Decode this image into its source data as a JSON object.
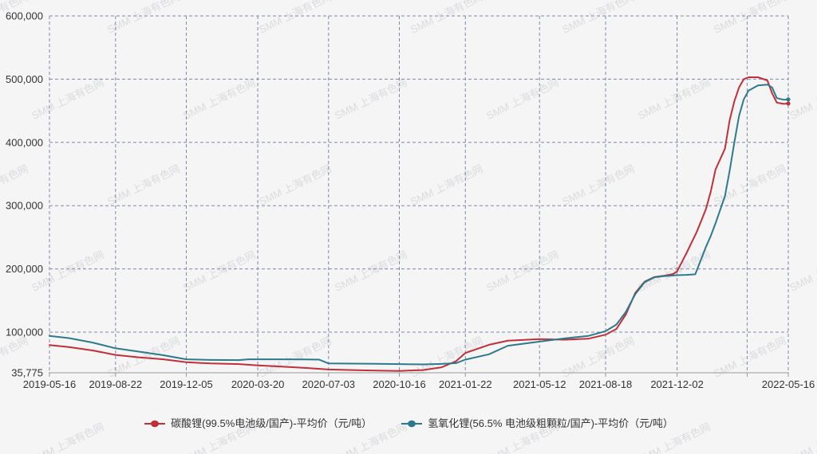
{
  "watermark": {
    "text": "SMM 上海有色网"
  },
  "chart_data": {
    "type": "line",
    "title": "",
    "grid": "dashed",
    "legend_position": "bottom",
    "x_axis": {
      "type": "time",
      "range": [
        "2019-05-16",
        "2022-05-16"
      ],
      "tick_labels": [
        "2019-05-16",
        "2019-08-22",
        "2019-12-05",
        "2020-03-20",
        "2020-07-03",
        "2020-10-16",
        "2021-01-22",
        "2021-05-12",
        "2021-08-18",
        "2021-12-02",
        "2022-05-16"
      ],
      "unlabeled_gridline_date": "2022-03-16"
    },
    "y_axis": {
      "unit": "元/吨",
      "min": 35775,
      "max": 600000,
      "ticks": [
        35775,
        100000,
        200000,
        300000,
        400000,
        500000,
        600000
      ],
      "tick_labels": [
        "35,775",
        "100,000",
        "200,000",
        "300,000",
        "400,000",
        "500,000",
        "600,000"
      ]
    },
    "series": [
      {
        "name": "碳酸锂(99.5%电池级/国产)-平均价（元/吨）",
        "color": "#c12f39",
        "points": [
          [
            "2019-05-16",
            79500
          ],
          [
            "2019-06-14",
            76500
          ],
          [
            "2019-07-19",
            71000
          ],
          [
            "2019-08-22",
            64000
          ],
          [
            "2019-09-27",
            60000
          ],
          [
            "2019-11-01",
            57000
          ],
          [
            "2019-12-05",
            52500
          ],
          [
            "2020-01-10",
            50500
          ],
          [
            "2020-02-21",
            49500
          ],
          [
            "2020-03-20",
            47500
          ],
          [
            "2020-04-24",
            45500
          ],
          [
            "2020-05-29",
            43500
          ],
          [
            "2020-07-03",
            41000
          ],
          [
            "2020-08-07",
            40000
          ],
          [
            "2020-09-11",
            39200
          ],
          [
            "2020-10-16",
            38700
          ],
          [
            "2020-11-20",
            40000
          ],
          [
            "2020-12-18",
            44500
          ],
          [
            "2021-01-08",
            54000
          ],
          [
            "2021-01-22",
            67000
          ],
          [
            "2021-02-26",
            80000
          ],
          [
            "2021-03-26",
            86500
          ],
          [
            "2021-05-12",
            89000
          ],
          [
            "2021-06-18",
            88000
          ],
          [
            "2021-07-23",
            89500
          ],
          [
            "2021-08-18",
            96000
          ],
          [
            "2021-09-03",
            105000
          ],
          [
            "2021-09-17",
            128000
          ],
          [
            "2021-10-01",
            162000
          ],
          [
            "2021-10-15",
            180000
          ],
          [
            "2021-10-29",
            187000
          ],
          [
            "2021-11-12",
            189000
          ],
          [
            "2021-11-26",
            192000
          ],
          [
            "2021-12-02",
            196000
          ],
          [
            "2021-12-16",
            225000
          ],
          [
            "2021-12-31",
            258000
          ],
          [
            "2022-01-14",
            295000
          ],
          [
            "2022-01-21",
            322000
          ],
          [
            "2022-01-28",
            357000
          ],
          [
            "2022-02-11",
            390000
          ],
          [
            "2022-02-18",
            435000
          ],
          [
            "2022-02-25",
            465000
          ],
          [
            "2022-03-04",
            487000
          ],
          [
            "2022-03-11",
            500000
          ],
          [
            "2022-03-18",
            503000
          ],
          [
            "2022-04-01",
            503000
          ],
          [
            "2022-04-15",
            498000
          ],
          [
            "2022-04-22",
            478000
          ],
          [
            "2022-04-29",
            463000
          ],
          [
            "2022-05-09",
            461000
          ],
          [
            "2022-05-16",
            461500
          ]
        ]
      },
      {
        "name": "氢氧化锂(56.5% 电池级粗颗粒/国产)-平均价（元/吨）",
        "color": "#2c7a8c",
        "points": [
          [
            "2019-05-16",
            94000
          ],
          [
            "2019-06-14",
            90500
          ],
          [
            "2019-07-19",
            83500
          ],
          [
            "2019-08-22",
            74500
          ],
          [
            "2019-09-27",
            69000
          ],
          [
            "2019-11-01",
            63500
          ],
          [
            "2019-12-05",
            57000
          ],
          [
            "2020-01-10",
            56000
          ],
          [
            "2020-02-21",
            55800
          ],
          [
            "2020-03-06",
            57000
          ],
          [
            "2020-04-24",
            57000
          ],
          [
            "2020-05-29",
            56800
          ],
          [
            "2020-06-19",
            56500
          ],
          [
            "2020-07-03",
            50500
          ],
          [
            "2020-08-07",
            50200
          ],
          [
            "2020-09-11",
            50000
          ],
          [
            "2020-10-16",
            49500
          ],
          [
            "2020-11-20",
            49000
          ],
          [
            "2020-12-18",
            49800
          ],
          [
            "2021-01-08",
            51000
          ],
          [
            "2021-01-22",
            56500
          ],
          [
            "2021-02-26",
            65000
          ],
          [
            "2021-03-26",
            78500
          ],
          [
            "2021-05-12",
            85000
          ],
          [
            "2021-06-18",
            90000
          ],
          [
            "2021-07-23",
            94000
          ],
          [
            "2021-08-18",
            101500
          ],
          [
            "2021-09-03",
            112000
          ],
          [
            "2021-09-17",
            132000
          ],
          [
            "2021-10-01",
            160000
          ],
          [
            "2021-10-15",
            179000
          ],
          [
            "2021-10-29",
            186500
          ],
          [
            "2021-11-12",
            188500
          ],
          [
            "2021-11-26",
            189500
          ],
          [
            "2021-12-02",
            190000
          ],
          [
            "2021-12-16",
            190500
          ],
          [
            "2021-12-29",
            191500
          ],
          [
            "2022-01-14",
            235000
          ],
          [
            "2022-01-21",
            252000
          ],
          [
            "2022-01-28",
            272000
          ],
          [
            "2022-02-11",
            315000
          ],
          [
            "2022-02-18",
            355000
          ],
          [
            "2022-02-25",
            400000
          ],
          [
            "2022-03-04",
            442000
          ],
          [
            "2022-03-11",
            468000
          ],
          [
            "2022-03-18",
            482000
          ],
          [
            "2022-04-01",
            490000
          ],
          [
            "2022-04-15",
            491500
          ],
          [
            "2022-04-22",
            487000
          ],
          [
            "2022-04-29",
            470000
          ],
          [
            "2022-05-09",
            467500
          ],
          [
            "2022-05-16",
            468000
          ]
        ]
      }
    ],
    "style": {
      "background": "#f5f5f6",
      "grid_line_color": "#7e89a9",
      "axis_line_color": "#999999",
      "label_color": "#333333"
    }
  }
}
